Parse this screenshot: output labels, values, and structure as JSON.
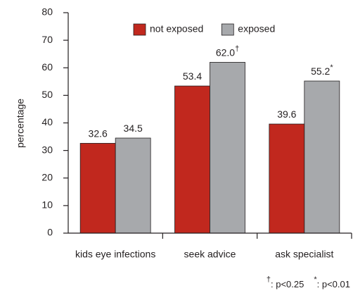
{
  "chart_data": {
    "type": "bar",
    "ylabel": "percentage",
    "categories": [
      "kids eye infections",
      "seek advice",
      "ask specialist"
    ],
    "series": [
      {
        "name": "not exposed",
        "color": "#c1281e",
        "values": [
          32.6,
          53.4,
          39.6
        ]
      },
      {
        "name": "exposed",
        "color": "#a7a9ac",
        "values": [
          34.5,
          62.0,
          55.2
        ],
        "value_labels": [
          "34.5",
          "62.0",
          "55.2"
        ],
        "value_markers": [
          null,
          "†",
          "*"
        ]
      }
    ],
    "ylim": [
      0,
      80
    ],
    "yticks": [
      0,
      10,
      20,
      30,
      40,
      50,
      60,
      70,
      80
    ],
    "grid": false,
    "legend": "top",
    "footnotes": [
      {
        "symbol": "†",
        "text": ": p<0.25"
      },
      {
        "symbol": "*",
        "text": ": p<0.01"
      }
    ]
  }
}
